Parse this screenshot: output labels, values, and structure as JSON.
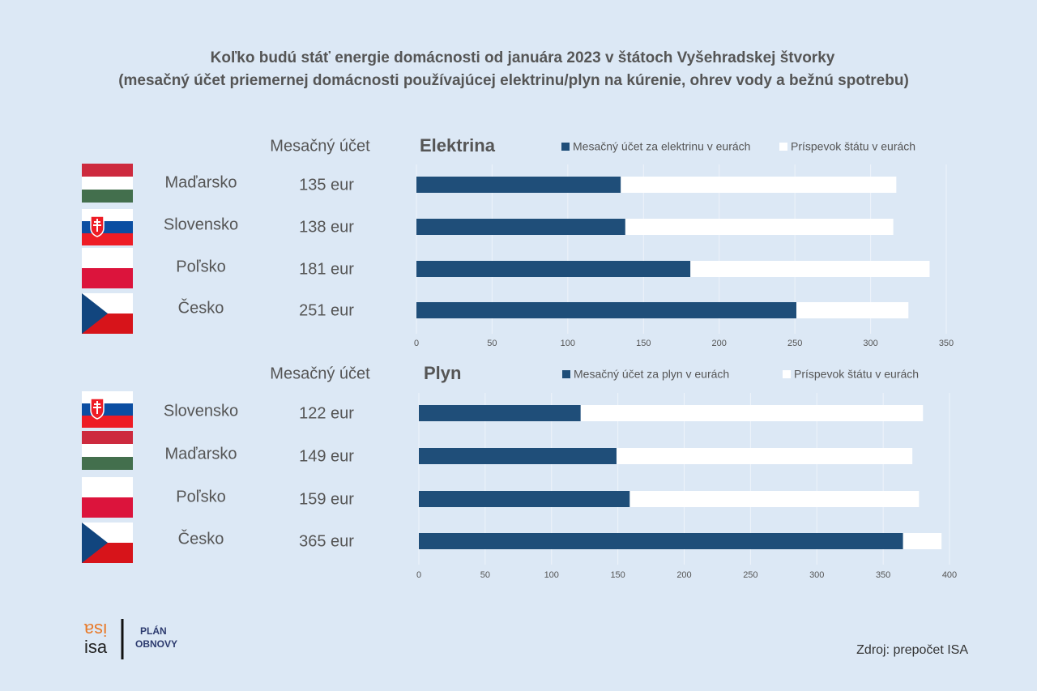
{
  "title": [
    "Koľko budú stáť energie domácnosti od januára 2023 v štátoch Vyšehradskej štvorky",
    "(mesačný účet priemernej domácnosti používajúcej elektrinu/plyn na kúrenie, ohrev vody a bežnú spotrebu)"
  ],
  "source": "Zdroj: prepočet ISA",
  "logo": {
    "name": "isa",
    "plan": "PLÁN",
    "obnovy": "OBNOVY"
  },
  "chart_data": [
    {
      "type": "bar",
      "orientation": "horizontal",
      "stacked": true,
      "title": "Elektrina",
      "column_header": "Mesačný účet",
      "categories": [
        "Maďarsko",
        "Slovensko",
        "Poľsko",
        "Česko"
      ],
      "series": [
        {
          "name": "Mesačný účet za elektrinu v eurách",
          "color": "#1f4e79",
          "values": [
            135,
            138,
            181,
            251
          ],
          "value_labels": [
            "135 eur",
            "138 eur",
            "181 eur",
            "251 eur"
          ]
        },
        {
          "name": "Príspevok štátu v eurách",
          "color": "#ffffff",
          "values": [
            182,
            177,
            158,
            74
          ]
        }
      ],
      "xlim": [
        0,
        350
      ],
      "xticks": [
        0,
        50,
        100,
        150,
        200,
        250,
        300,
        350
      ],
      "grid": true
    },
    {
      "type": "bar",
      "orientation": "horizontal",
      "stacked": true,
      "title": "Plyn",
      "column_header": "Mesačný účet",
      "categories": [
        "Slovensko",
        "Maďarsko",
        "Poľsko",
        "Česko"
      ],
      "series": [
        {
          "name": "Mesačný účet za plyn v eurách",
          "color": "#1f4e79",
          "values": [
            122,
            149,
            159,
            365
          ],
          "value_labels": [
            "122 eur",
            "149 eur",
            "159 eur",
            "365 eur"
          ]
        },
        {
          "name": "Príspevok štátu v eurách",
          "color": "#ffffff",
          "values": [
            258,
            223,
            218,
            29
          ]
        }
      ],
      "xlim": [
        0,
        400
      ],
      "xticks": [
        0,
        50,
        100,
        150,
        200,
        250,
        300,
        350,
        400
      ],
      "grid": true
    }
  ]
}
